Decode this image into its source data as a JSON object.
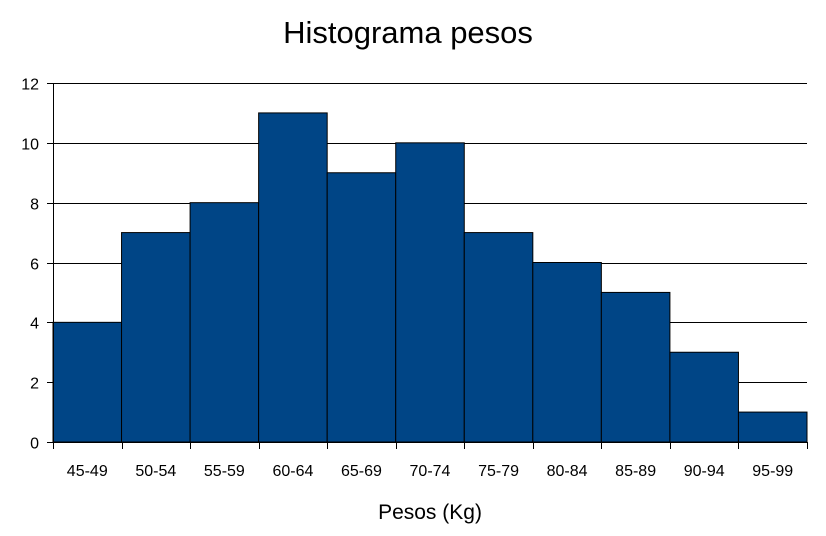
{
  "chart_data": {
    "type": "bar",
    "title": "Histograma pesos",
    "xlabel": "Pesos (Kg)",
    "ylabel": "",
    "categories": [
      "45-49",
      "50-54",
      "55-59",
      "60-64",
      "65-69",
      "70-74",
      "75-79",
      "80-84",
      "85-89",
      "90-94",
      "95-99"
    ],
    "values": [
      4,
      7,
      8,
      11,
      9,
      10,
      7,
      6,
      5,
      3,
      1
    ],
    "ylim": [
      0,
      12
    ],
    "yticks": [
      "0",
      "2",
      "4",
      "6",
      "8",
      "10",
      "12"
    ],
    "grid": true,
    "legend": "none",
    "bar_color": "#004586",
    "bar_outline_color": "#000000",
    "grid_color": "#000000"
  }
}
